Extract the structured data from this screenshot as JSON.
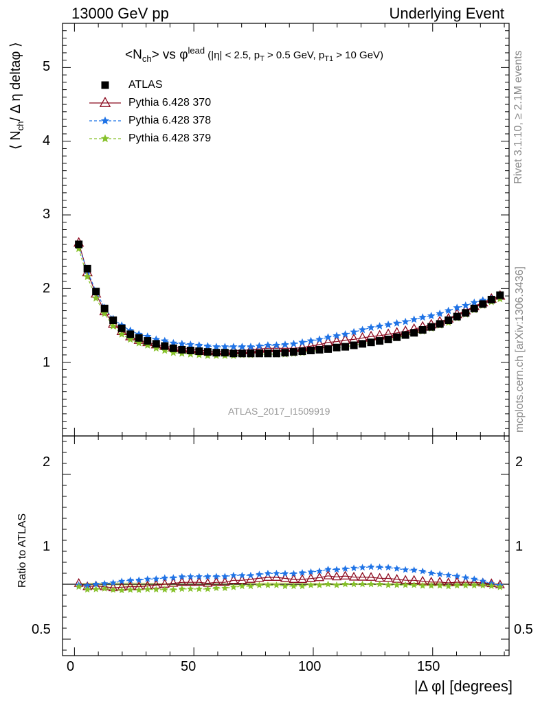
{
  "header": {
    "left": "13000 GeV pp",
    "right": "Underlying Event"
  },
  "side_labels": {
    "rivet": "Rivet 3.1.10, ≥ 2.1M events",
    "mcplots": "mcplots.cern.ch [arXiv:1306.3436]"
  },
  "chart_data": [
    {
      "type": "scatter",
      "panel": "main",
      "title": "<N_ch> vs φ^lead (|η| < 2.5, p_T > 0.5 GeV, p_T1 > 10 GeV)",
      "title_parts": {
        "main": "<N",
        "main_sub": "ch",
        "mid": "> vs φ",
        "sup": "lead",
        "c1": "(|η| < 2.5, p",
        "s1": "T",
        "c2": " > 0.5 GeV, p",
        "s2": "T1",
        "c3": " > 10 GeV)"
      },
      "ylabel": "⟨ N_ch / Δη deltaφ ⟩",
      "ylabel_parts": {
        "a": "⟨ N",
        "sub": "ch",
        "b": "/ Δ η deltaφ ⟩"
      },
      "xlim": [
        -5,
        182
      ],
      "ylim": [
        0,
        5.6
      ],
      "yticks": [
        1,
        2,
        3,
        4,
        5
      ],
      "reference": "ATLAS_2017_I1509919",
      "legend_position": "top-left",
      "x": [
        1.8,
        5.4,
        9.0,
        12.6,
        16.2,
        19.8,
        23.4,
        27.0,
        30.6,
        34.2,
        37.8,
        41.4,
        45.0,
        48.6,
        52.2,
        55.8,
        59.4,
        63.0,
        66.6,
        70.2,
        73.8,
        77.4,
        81.0,
        84.6,
        88.2,
        91.8,
        95.4,
        99.0,
        102.6,
        106.2,
        109.8,
        113.4,
        117.0,
        120.6,
        124.2,
        127.8,
        131.4,
        135.0,
        138.6,
        142.2,
        145.8,
        149.4,
        153.0,
        156.6,
        160.2,
        163.8,
        167.4,
        171.0,
        174.6,
        178.2
      ],
      "series": [
        {
          "name": "ATLAS",
          "color": "#000000",
          "marker": "square",
          "values": [
            2.6,
            2.27,
            1.96,
            1.73,
            1.57,
            1.46,
            1.38,
            1.33,
            1.29,
            1.25,
            1.22,
            1.19,
            1.17,
            1.16,
            1.15,
            1.14,
            1.13,
            1.13,
            1.12,
            1.12,
            1.12,
            1.12,
            1.12,
            1.12,
            1.13,
            1.14,
            1.15,
            1.16,
            1.17,
            1.18,
            1.2,
            1.21,
            1.23,
            1.25,
            1.27,
            1.29,
            1.31,
            1.34,
            1.37,
            1.4,
            1.44,
            1.48,
            1.52,
            1.57,
            1.62,
            1.67,
            1.73,
            1.79,
            1.85,
            1.91
          ]
        },
        {
          "name": "Pythia 6.428 370",
          "color": "#8b0a1f",
          "marker": "triangle",
          "values": [
            2.62,
            2.22,
            1.93,
            1.69,
            1.52,
            1.42,
            1.35,
            1.3,
            1.27,
            1.24,
            1.22,
            1.2,
            1.19,
            1.18,
            1.17,
            1.15,
            1.15,
            1.15,
            1.16,
            1.16,
            1.17,
            1.18,
            1.19,
            1.19,
            1.19,
            1.19,
            1.2,
            1.22,
            1.24,
            1.27,
            1.28,
            1.3,
            1.31,
            1.33,
            1.35,
            1.36,
            1.38,
            1.4,
            1.42,
            1.45,
            1.48,
            1.51,
            1.55,
            1.59,
            1.65,
            1.7,
            1.76,
            1.81,
            1.86,
            1.9
          ]
        },
        {
          "name": "Pythia 6.428 378",
          "color": "#1f73e6",
          "marker": "star",
          "values": [
            2.58,
            2.24,
            1.96,
            1.74,
            1.59,
            1.5,
            1.43,
            1.38,
            1.35,
            1.31,
            1.29,
            1.26,
            1.25,
            1.24,
            1.23,
            1.22,
            1.21,
            1.21,
            1.21,
            1.21,
            1.21,
            1.22,
            1.23,
            1.23,
            1.24,
            1.25,
            1.27,
            1.29,
            1.31,
            1.34,
            1.36,
            1.38,
            1.41,
            1.44,
            1.47,
            1.49,
            1.51,
            1.53,
            1.55,
            1.58,
            1.61,
            1.63,
            1.66,
            1.7,
            1.74,
            1.77,
            1.81,
            1.84,
            1.86,
            1.89
          ]
        },
        {
          "name": "Pythia 6.428 379",
          "color": "#86c12a",
          "marker": "star",
          "values": [
            2.54,
            2.16,
            1.87,
            1.66,
            1.49,
            1.38,
            1.31,
            1.26,
            1.23,
            1.19,
            1.16,
            1.13,
            1.12,
            1.11,
            1.1,
            1.09,
            1.09,
            1.09,
            1.09,
            1.1,
            1.1,
            1.11,
            1.11,
            1.11,
            1.11,
            1.12,
            1.13,
            1.15,
            1.16,
            1.18,
            1.19,
            1.21,
            1.23,
            1.25,
            1.27,
            1.29,
            1.3,
            1.33,
            1.36,
            1.39,
            1.42,
            1.46,
            1.5,
            1.54,
            1.6,
            1.65,
            1.71,
            1.77,
            1.82,
            1.86
          ]
        }
      ]
    },
    {
      "type": "scatter",
      "panel": "ratio",
      "xlabel": "|Δ φ| [degrees]",
      "ylabel": "Ratio to ATLAS",
      "xlim": [
        -5,
        182
      ],
      "ylim": [
        0.35,
        2.35
      ],
      "xticks": [
        0,
        50,
        100,
        150
      ],
      "yticks": [
        0.5,
        1,
        2
      ],
      "series_note": "ratio = MC / ATLAS, same x as main panel"
    }
  ]
}
